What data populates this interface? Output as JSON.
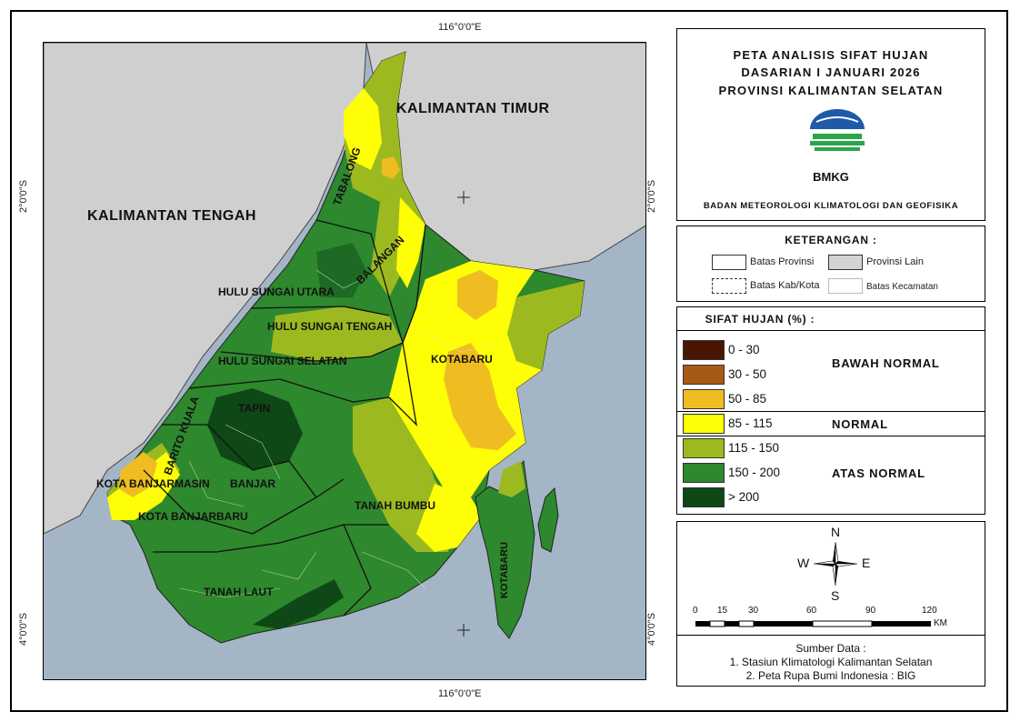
{
  "title": {
    "line1": "PETA ANALISIS SIFAT HUJAN",
    "line2": "DASARIAN I JANUARI 2026",
    "line3": "PROVINSI KALIMANTAN SELATAN"
  },
  "logo": {
    "text": "BMKG",
    "icon": "bmkg-logo"
  },
  "agency": "BADAN METEOROLOGI KLIMATOLOGI DAN GEOFISIKA",
  "coords": {
    "top": "116°0'0\"E",
    "bottom": "116°0'0\"E",
    "left_upper": "2°0'0\"S",
    "left_lower": "4°0'0\"S",
    "right_upper": "2°0'0\"S",
    "right_lower": "4°0'0\"S"
  },
  "keterangan": {
    "title": "KETERANGAN :",
    "items": [
      {
        "label": "Batas Provinsi",
        "color": "#ffffff",
        "style": "solid"
      },
      {
        "label": "Provinsi Lain",
        "color": "#d3d3d3",
        "style": "solid"
      },
      {
        "label": "Batas Kab/Kota",
        "color": "#ffffff",
        "style": "dashed"
      },
      {
        "label": "Batas Kecamatan",
        "color": "#ffffff",
        "style": "solid-light"
      }
    ]
  },
  "sifat_hujan": {
    "title": "SIFAT HUJAN (%) :",
    "classes": [
      {
        "label": "0 - 30",
        "color": "#4a1505"
      },
      {
        "label": "30 - 50",
        "color": "#a75a13"
      },
      {
        "label": "50 - 85",
        "color": "#efbd22"
      },
      {
        "label": "85 - 115",
        "color": "#fefe07"
      },
      {
        "label": "115 - 150",
        "color": "#9cba1f"
      },
      {
        "label": "150 - 200",
        "color": "#2e882d"
      },
      {
        "label": "> 200",
        "color": "#0d4816"
      }
    ],
    "categories": {
      "below": "BAWAH NORMAL",
      "normal": "NORMAL",
      "above": "ATAS NORMAL"
    }
  },
  "compass": {
    "n": "N",
    "s": "S",
    "e": "E",
    "w": "W"
  },
  "scale": {
    "ticks": [
      "0",
      "15",
      "30",
      "60",
      "90",
      "120"
    ],
    "unit": "KM"
  },
  "source": {
    "title": "Sumber Data :",
    "line1": "1. Stasiun Klimatologi Kalimantan Selatan",
    "line2": "2. Peta Rupa Bumi Indonesia : BIG"
  },
  "regions": {
    "kalimantan_tengah": "KALIMANTAN TENGAH",
    "kalimantan_timur": "KALIMANTAN TIMUR",
    "tabalong": "TABALONG",
    "balangan": "BALANGAN",
    "hulu_sungai_utara": "HULU SUNGAI UTARA",
    "hulu_sungai_tengah": "HULU SUNGAI TENGAH",
    "hulu_sungai_selatan": "HULU SUNGAI SELATAN",
    "tapin": "TAPIN",
    "barito_kuala": "BARITO KUALA",
    "kota_banjarmasin": "KOTA BANJARMASIN",
    "banjar": "BANJAR",
    "kota_banjarbaru": "KOTA BANJARBARU",
    "tanah_laut": "TANAH LAUT",
    "tanah_bumbu": "TANAH BUMBU",
    "kotabaru": "KOTABARU",
    "kotabaru_island": "KOTABARU"
  },
  "map_colors": {
    "sea": "#a4b5c6",
    "other_province": "#cfcfcf"
  }
}
